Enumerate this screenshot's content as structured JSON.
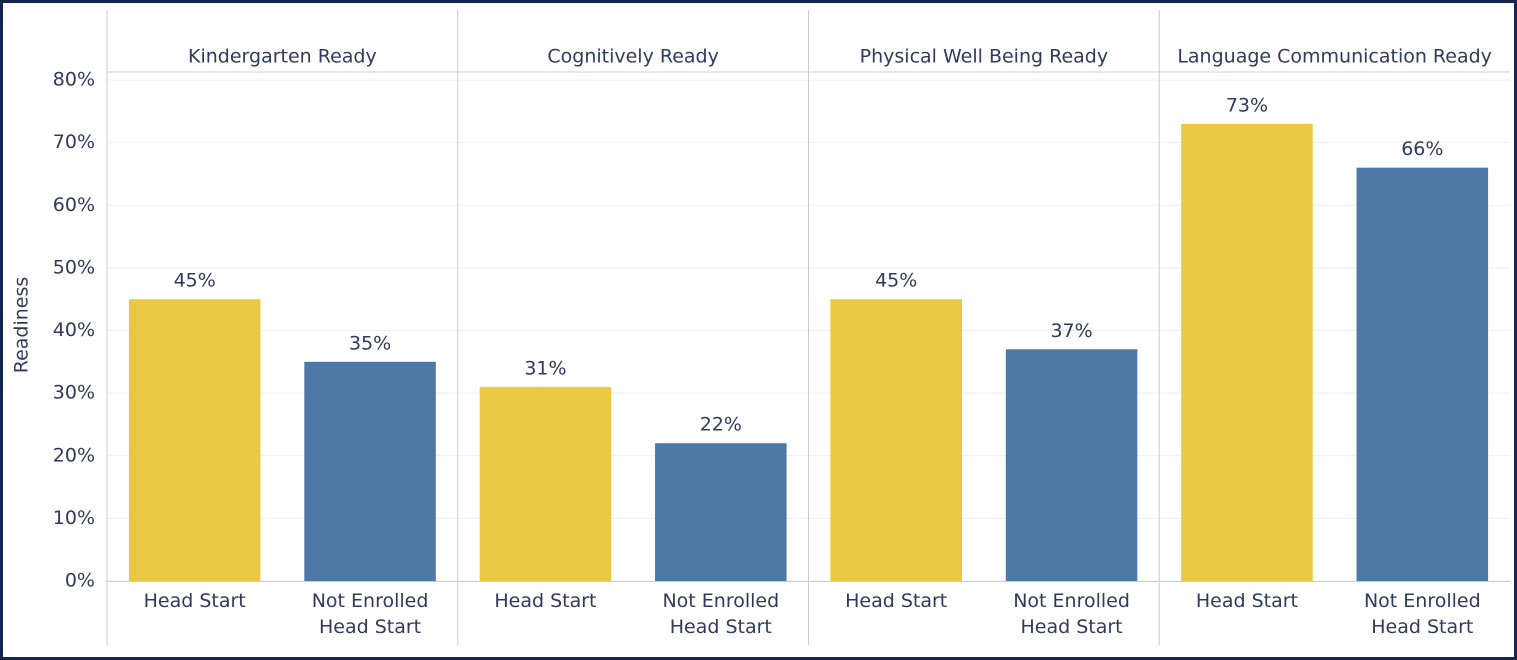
{
  "chart_data": {
    "type": "bar",
    "ylabel": "Readiness",
    "ylim": [
      0,
      80
    ],
    "yticks": [
      {
        "value": 0,
        "label": "0%"
      },
      {
        "value": 10,
        "label": "10%"
      },
      {
        "value": 20,
        "label": "20%"
      },
      {
        "value": 30,
        "label": "30%"
      },
      {
        "value": 40,
        "label": "40%"
      },
      {
        "value": 50,
        "label": "50%"
      },
      {
        "value": 60,
        "label": "60%"
      },
      {
        "value": 70,
        "label": "70%"
      },
      {
        "value": 80,
        "label": "80%"
      }
    ],
    "grid": true,
    "colors": [
      "#ebc844",
      "#4e79a7"
    ],
    "panels": [
      {
        "title": "Kindergarten Ready",
        "categories": [
          "Head Start",
          "Not Enrolled Head Start"
        ],
        "values": [
          45,
          35
        ],
        "value_labels": [
          "45%",
          "35%"
        ]
      },
      {
        "title": "Cognitively Ready",
        "categories": [
          "Head Start",
          "Not Enrolled Head Start"
        ],
        "values": [
          31,
          22
        ],
        "value_labels": [
          "31%",
          "22%"
        ]
      },
      {
        "title": "Physical Well Being Ready",
        "categories": [
          "Head Start",
          "Not Enrolled Head Start"
        ],
        "values": [
          45,
          37
        ],
        "value_labels": [
          "45%",
          "37%"
        ]
      },
      {
        "title": "Language Communication Ready",
        "categories": [
          "Head Start",
          "Not Enrolled Head Start"
        ],
        "values": [
          73,
          66
        ],
        "value_labels": [
          "73%",
          "66%"
        ]
      }
    ]
  }
}
